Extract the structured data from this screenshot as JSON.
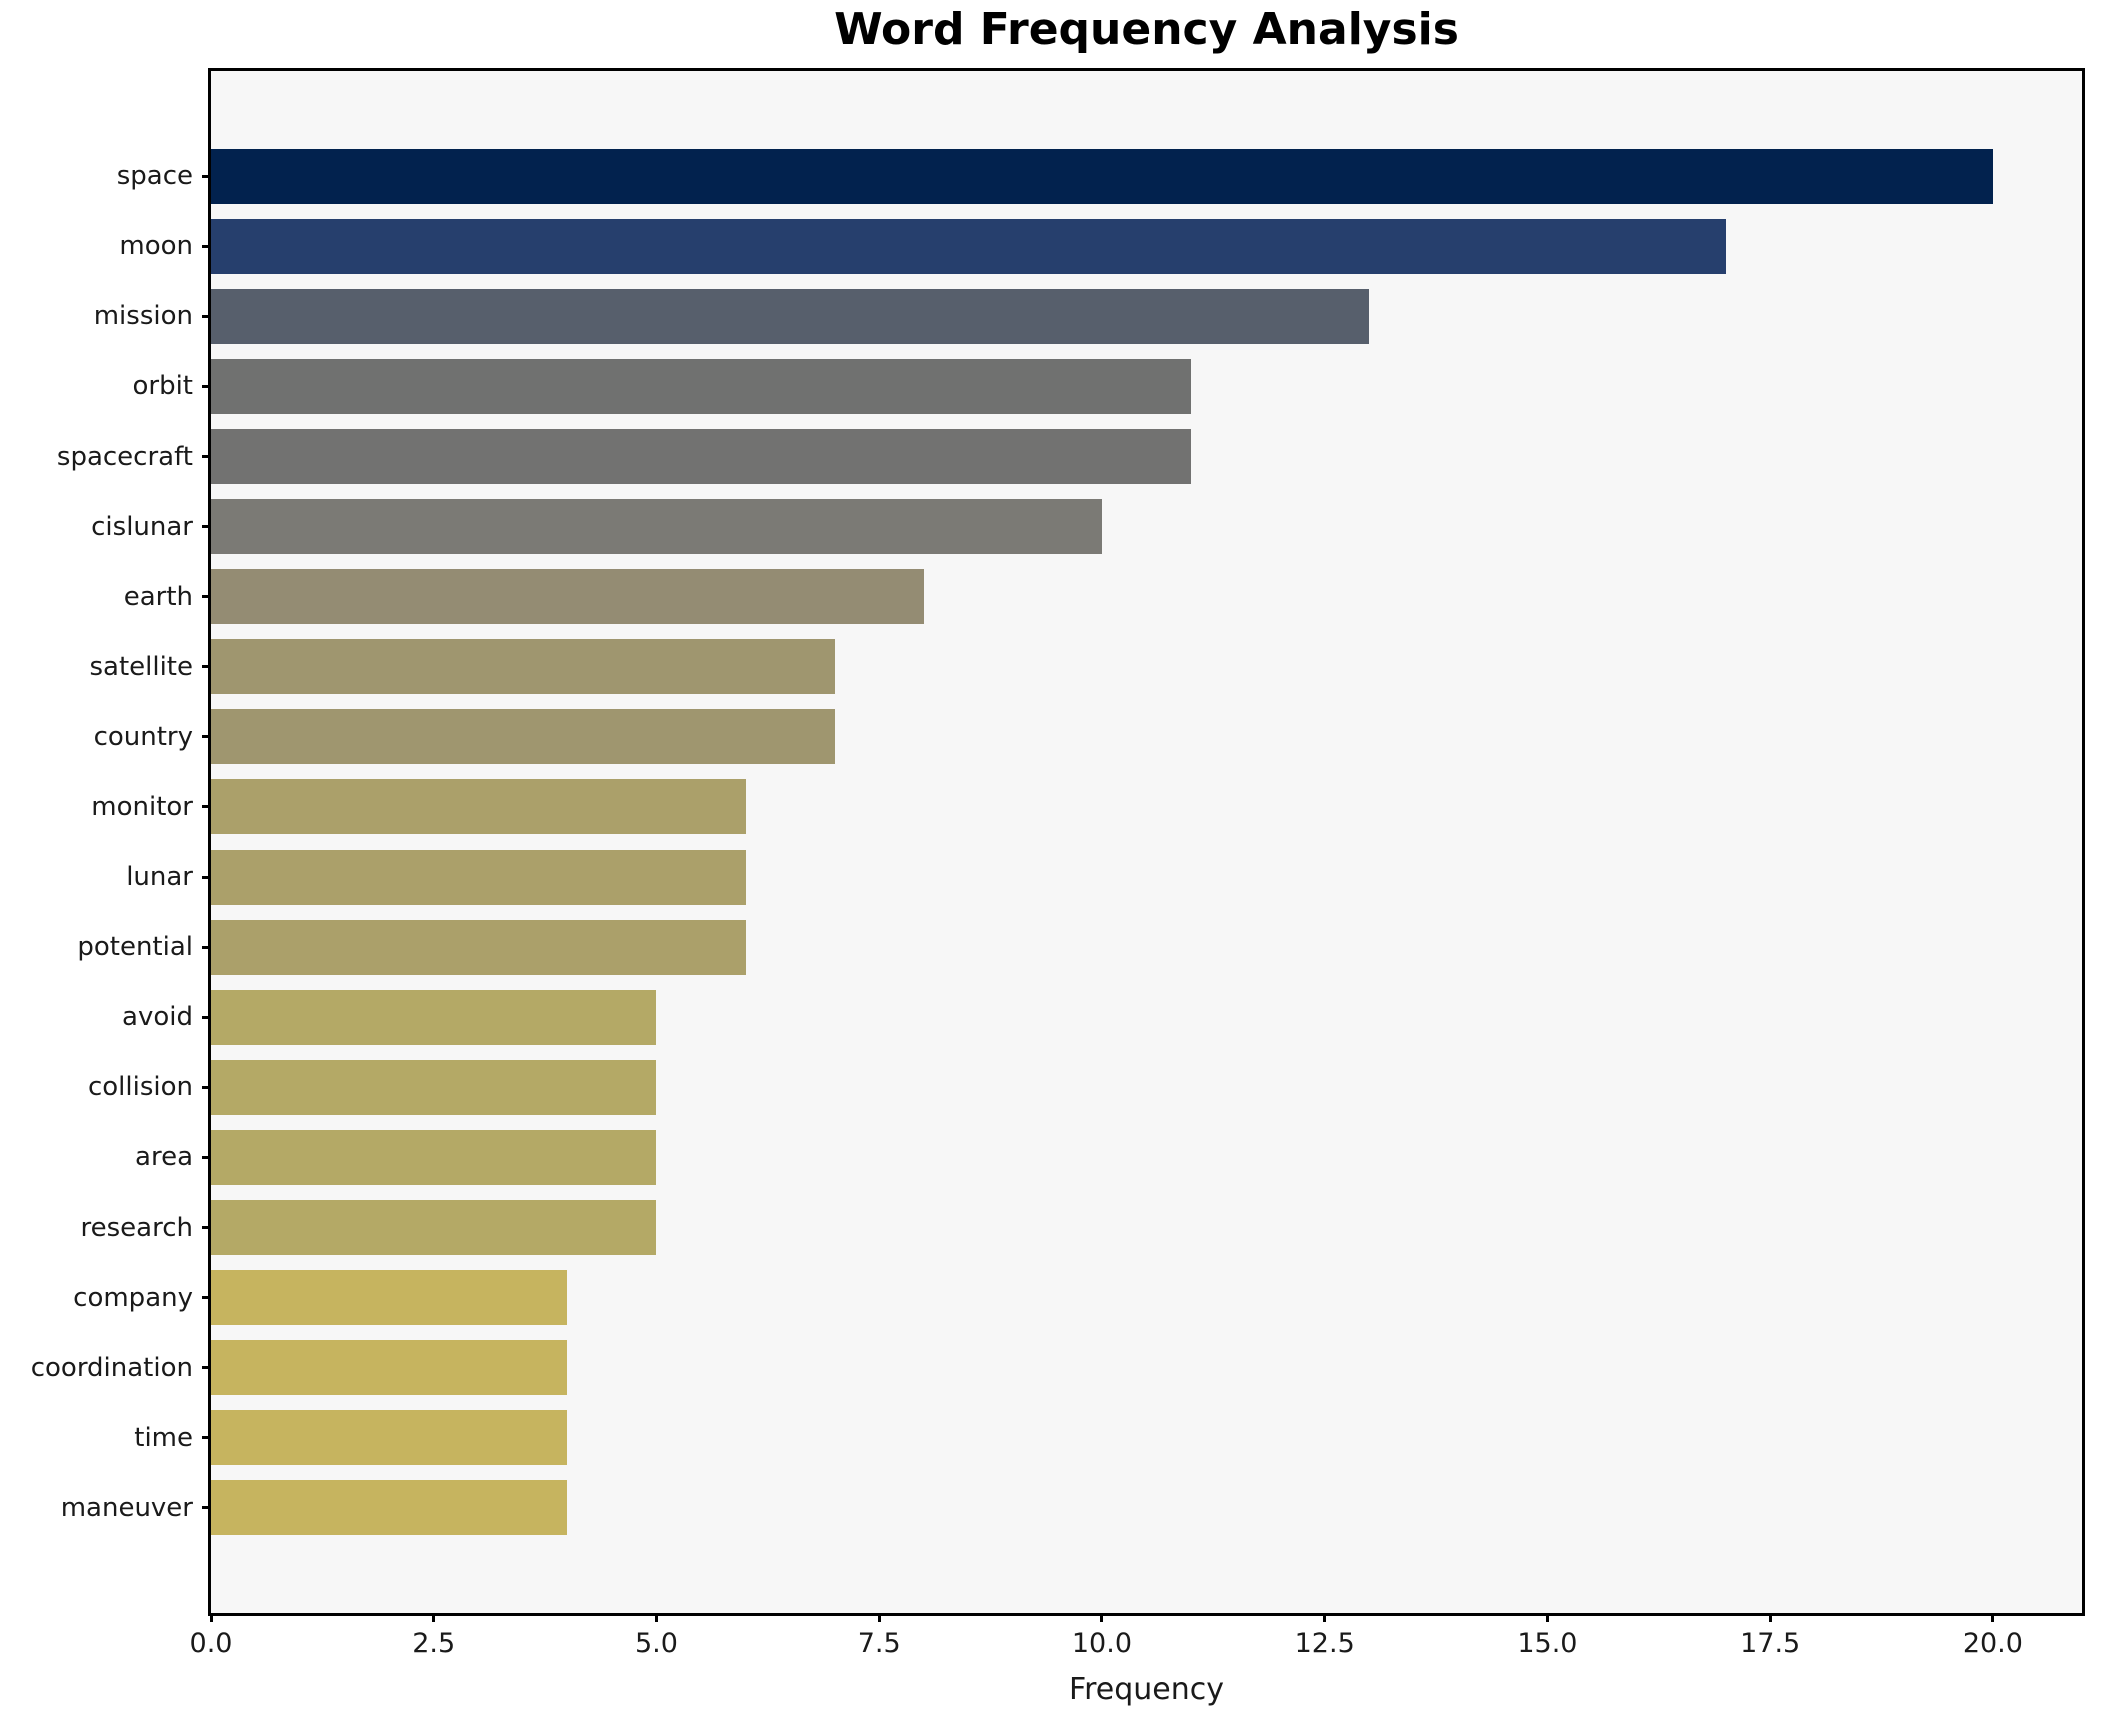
{
  "chart_data": {
    "type": "bar",
    "orientation": "horizontal",
    "title": "Word Frequency Analysis",
    "xlabel": "Frequency",
    "ylabel": "",
    "categories": [
      "space",
      "moon",
      "mission",
      "orbit",
      "spacecraft",
      "cislunar",
      "earth",
      "satellite",
      "country",
      "monitor",
      "lunar",
      "potential",
      "avoid",
      "collision",
      "area",
      "research",
      "company",
      "coordination",
      "time",
      "maneuver"
    ],
    "values": [
      20,
      17,
      13,
      11,
      11,
      10,
      8,
      7,
      7,
      6,
      6,
      6,
      5,
      5,
      5,
      5,
      4,
      4,
      4,
      4
    ],
    "bar_colors": [
      "#02224e",
      "#263f6d",
      "#575f6c",
      "#707170",
      "#727271",
      "#7b7a75",
      "#948c73",
      "#9f966f",
      "#9f966f",
      "#aba06a",
      "#aba06a",
      "#aba06a",
      "#b4a966",
      "#b4a966",
      "#b4a966",
      "#b4a966",
      "#c6b45f",
      "#c6b45f",
      "#c6b45f",
      "#c6b45f"
    ],
    "xlim": [
      0,
      21
    ],
    "xticks": [
      0,
      2.5,
      5,
      7.5,
      10,
      12.5,
      15,
      17.5,
      20
    ],
    "xtick_labels": [
      "0.0",
      "2.5",
      "5.0",
      "7.5",
      "10.0",
      "12.5",
      "15.0",
      "17.5",
      "20.0"
    ],
    "grid": false,
    "legend": "none",
    "plot_background": "#f7f7f7",
    "figure_background": "#ffffff",
    "spine_color": "#000000"
  }
}
